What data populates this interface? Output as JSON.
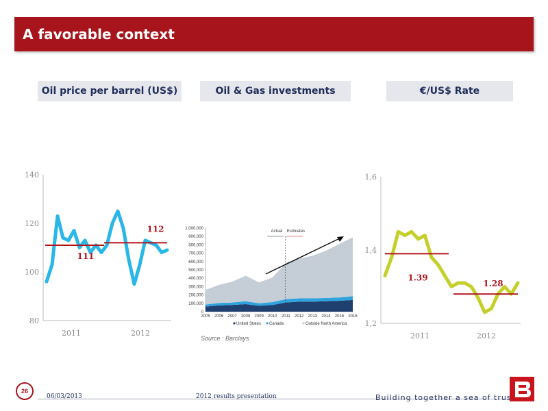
{
  "header": {
    "title": "A favorable context"
  },
  "panels": {
    "oil_title": "Oil price per barrel (US$)",
    "investments_title": "Oil & Gas investments",
    "fx_title": "€/US$ Rate"
  },
  "colors": {
    "brand_red": "#a8141c",
    "oil_line": "#29b6e8",
    "fx_line": "#c5cf2a",
    "navy": "#1f2d5a"
  },
  "chart_data": [
    {
      "type": "line",
      "ylim": [
        80,
        140
      ],
      "y_ticks": [
        "80",
        "100",
        "120",
        "140"
      ],
      "x_labels": [
        "2011",
        "2012"
      ],
      "values": [
        96,
        103,
        123,
        114,
        113,
        117,
        110,
        113,
        108,
        111,
        108,
        111,
        120,
        125,
        118,
        105,
        95,
        103,
        113,
        112,
        111,
        108,
        109
      ],
      "reference_lines": [
        {
          "label": "111",
          "value": 111
        },
        {
          "label": "112",
          "value": 112
        }
      ],
      "colors": {
        "line": "#29b6e8",
        "reference": "#b0141c"
      }
    },
    {
      "type": "area",
      "x": [
        "2005",
        "2006",
        "2007",
        "2008",
        "2009",
        "2010",
        "2011",
        "2012",
        "2013",
        "2014",
        "2015",
        "2016"
      ],
      "y_ticks": [
        "0",
        "100,000",
        "200,000",
        "300,000",
        "400,000",
        "500,000",
        "600,000",
        "700,000",
        "800,000",
        "900,000",
        "1,000,000"
      ],
      "ylim": [
        0,
        1000000
      ],
      "series": [
        {
          "name": "United States",
          "values": [
            60000,
            75000,
            80000,
            90000,
            70000,
            80000,
            110000,
            120000,
            120000,
            125000,
            130000,
            140000
          ]
        },
        {
          "name": "Canada",
          "values": [
            25000,
            30000,
            30000,
            35000,
            30000,
            35000,
            40000,
            40000,
            40000,
            40000,
            40000,
            45000
          ]
        },
        {
          "name": "Outside North America",
          "values": [
            175000,
            215000,
            250000,
            305000,
            250000,
            295000,
            435000,
            475000,
            510000,
            565000,
            640000,
            705000
          ]
        }
      ],
      "annotations": [
        "Actual",
        "Estimates"
      ],
      "colors": {
        "United States": "#1f3f6e",
        "Canada": "#2ea3dc",
        "Outside North America": "#c5ced6"
      }
    },
    {
      "type": "line",
      "ylim": [
        1.2,
        1.6
      ],
      "y_ticks": [
        "1,2",
        "1,4",
        "1,6"
      ],
      "x_labels": [
        "2011",
        "2012"
      ],
      "values": [
        1.33,
        1.38,
        1.45,
        1.44,
        1.45,
        1.43,
        1.44,
        1.38,
        1.36,
        1.33,
        1.3,
        1.31,
        1.31,
        1.3,
        1.27,
        1.23,
        1.24,
        1.28,
        1.3,
        1.28,
        1.31
      ],
      "reference_lines": [
        {
          "label": "1.39",
          "value": 1.39
        },
        {
          "label": "1.28",
          "value": 1.28
        }
      ],
      "colors": {
        "line": "#c5cf2a",
        "reference": "#b0141c"
      }
    }
  ],
  "source_note": "Source : Barclays",
  "footer": {
    "page": "26",
    "date": "06/03/2013",
    "presentation": "2012 results presentation",
    "tagline": "Building together a sea of trust"
  }
}
